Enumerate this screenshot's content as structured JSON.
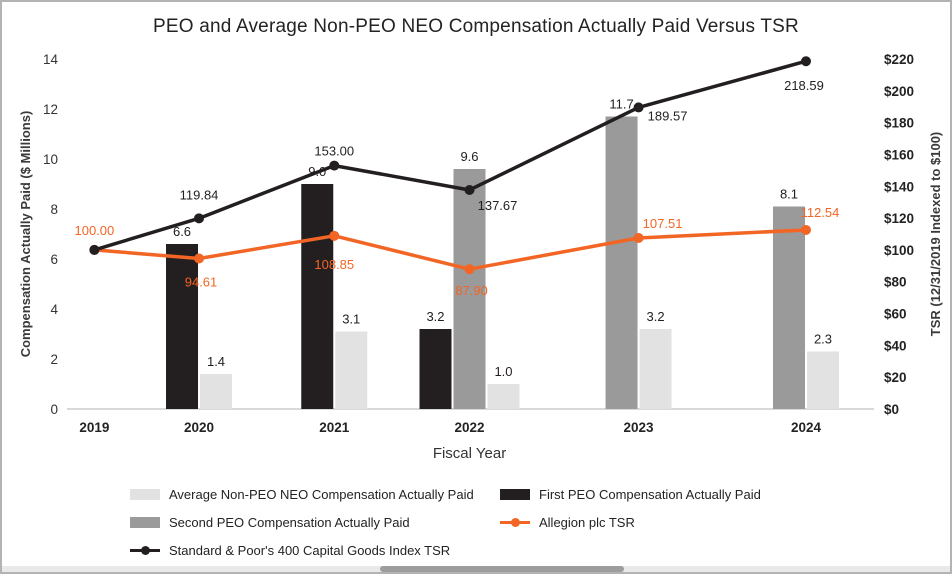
{
  "chart_data": {
    "type": "combo-bar-line",
    "title": "PEO and Average Non-PEO NEO Compensation Actually Paid Versus TSR",
    "categories": [
      "2019",
      "2020",
      "2021",
      "2022",
      "2023",
      "2024"
    ],
    "xlabel": "Fiscal Year",
    "left_axis": {
      "label": "Compensation Actually Paid ($ Millions)",
      "min": 0,
      "max": 14,
      "step": 2,
      "ticks": [
        "0",
        "2",
        "4",
        "6",
        "8",
        "10",
        "12",
        "14"
      ]
    },
    "right_axis": {
      "label": "TSR (12/31/2019 Indexed to $100)",
      "min": 0,
      "max": 220,
      "step": 20,
      "ticks": [
        "$0",
        "$20",
        "$40",
        "$60",
        "$80",
        "$100",
        "$120",
        "$140",
        "$160",
        "$180",
        "$200",
        "$220"
      ]
    },
    "bar_series": [
      {
        "name": "First PEO Compensation Actually Paid",
        "color": "#231f20",
        "values": [
          null,
          6.6,
          9.0,
          3.2,
          null,
          null
        ]
      },
      {
        "name": "Second PEO Compensation Actually Paid",
        "color": "#9a9a9a",
        "values": [
          null,
          null,
          null,
          9.6,
          11.7,
          8.1
        ]
      },
      {
        "name": "Average Non-PEO NEO Compensation Actually Paid",
        "color": "#e2e2e2",
        "values": [
          null,
          1.4,
          3.1,
          1.0,
          3.2,
          2.3
        ]
      }
    ],
    "line_series": [
      {
        "name": "Allegion plc TSR",
        "color": "#f26524",
        "values": [
          100.0,
          94.61,
          108.85,
          87.9,
          107.51,
          112.54
        ]
      },
      {
        "name": "Standard & Poor's 400 Capital Goods Index TSR",
        "color": "#231f20",
        "values": [
          100.0,
          119.84,
          153.0,
          137.67,
          189.57,
          218.59
        ]
      }
    ],
    "grid": false,
    "legend_position": "bottom"
  },
  "legend": {
    "items": [
      {
        "label": "Average Non-PEO NEO Compensation Actually Paid",
        "type": "bar",
        "color": "#e2e2e2"
      },
      {
        "label": "First PEO Compensation Actually Paid",
        "type": "bar",
        "color": "#231f20"
      },
      {
        "label": "Second PEO Compensation Actually Paid",
        "type": "bar",
        "color": "#9a9a9a"
      },
      {
        "label": "Allegion plc TSR",
        "type": "line",
        "color": "#f26524"
      },
      {
        "label": "Standard & Poor's 400 Capital Goods Index TSR",
        "type": "line",
        "color": "#231f20"
      }
    ]
  }
}
